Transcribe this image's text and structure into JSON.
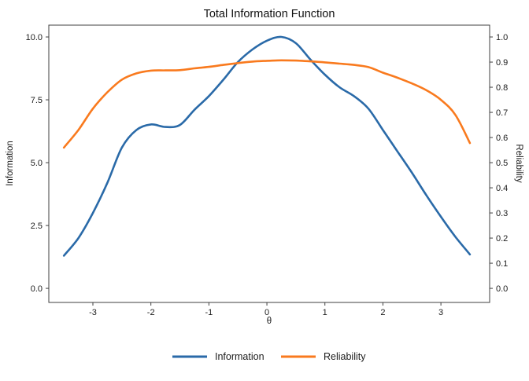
{
  "title": "Total Information Function",
  "chart_data": {
    "type": "line",
    "title": "Total Information Function",
    "xlabel": "θ",
    "ylabel_left": "Information",
    "ylabel_right": "Reliability",
    "grid": false,
    "legend_position": "bottom",
    "xlim": [
      -3.76,
      3.84
    ],
    "ylim_left": [
      -0.56,
      10.47
    ],
    "ylim_right": [
      -0.056,
      1.047
    ],
    "x_ticks": {
      "values": [
        -3,
        -2,
        -1,
        0,
        1,
        2,
        3
      ],
      "labels": [
        "-3",
        "-2",
        "-1",
        "0",
        "1",
        "2",
        "3"
      ]
    },
    "y_ticks_left": {
      "values": [
        0,
        2.5,
        5,
        7.5,
        10
      ],
      "labels": [
        "0.0",
        "2.5",
        "5.0",
        "7.5",
        "10.0"
      ]
    },
    "y_ticks_right": {
      "values": [
        0,
        0.1,
        0.2,
        0.3,
        0.4,
        0.5,
        0.6,
        0.7,
        0.8,
        0.9,
        1.0
      ],
      "labels": [
        "0.0",
        "0.1",
        "0.2",
        "0.3",
        "0.4",
        "0.5",
        "0.6",
        "0.7",
        "0.8",
        "0.9",
        "1.0"
      ]
    },
    "x": [
      -3.5,
      -3.25,
      -3.0,
      -2.75,
      -2.5,
      -2.25,
      -2.0,
      -1.75,
      -1.5,
      -1.25,
      -1.0,
      -0.75,
      -0.5,
      -0.25,
      0.0,
      0.25,
      0.5,
      0.75,
      1.0,
      1.25,
      1.5,
      1.75,
      2.0,
      2.25,
      2.5,
      2.75,
      3.0,
      3.25,
      3.5
    ],
    "series": [
      {
        "name": "Information",
        "axis": "left",
        "color": "#2a6aa8",
        "values": [
          1.3,
          2.0,
          3.0,
          4.2,
          5.6,
          6.3,
          6.52,
          6.42,
          6.5,
          7.1,
          7.65,
          8.3,
          9.0,
          9.5,
          9.85,
          10.0,
          9.75,
          9.1,
          8.5,
          8.0,
          7.65,
          7.15,
          6.3,
          5.45,
          4.6,
          3.7,
          2.85,
          2.05,
          1.35
        ]
      },
      {
        "name": "Reliability",
        "axis": "right",
        "color": "#f97a1e",
        "values": [
          0.56,
          0.63,
          0.715,
          0.78,
          0.83,
          0.855,
          0.866,
          0.867,
          0.868,
          0.875,
          0.881,
          0.889,
          0.896,
          0.902,
          0.905,
          0.907,
          0.906,
          0.903,
          0.899,
          0.894,
          0.889,
          0.88,
          0.858,
          0.838,
          0.815,
          0.788,
          0.75,
          0.69,
          0.578
        ]
      }
    ]
  }
}
